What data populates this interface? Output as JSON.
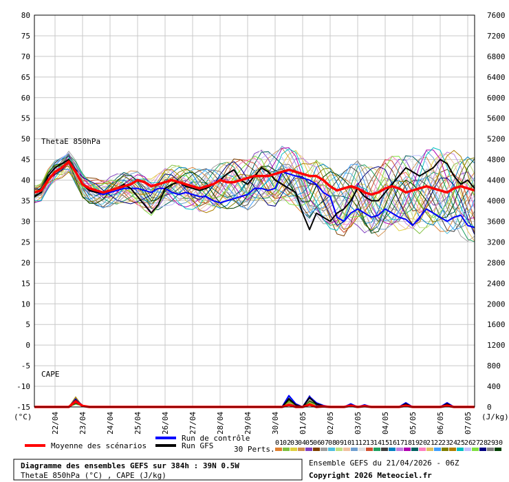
{
  "chart_data": {
    "type": "line",
    "title": "Diagramme des ensembles GEFS sur 384h : 39N 0.5W",
    "subtitle": "ThetaE 850hPa (°C) , CAPE (J/kg)",
    "panel_labels": {
      "thetae": "ThetaE 850hPa",
      "cape": "CAPE"
    },
    "left_axis": {
      "unit": "(°C)",
      "ticks": [
        -15,
        -10,
        -5,
        0,
        5,
        10,
        15,
        20,
        25,
        30,
        35,
        40,
        45,
        50,
        55,
        60,
        65,
        70,
        75,
        80
      ],
      "range": [
        -15,
        80
      ]
    },
    "right_axis": {
      "unit": "(J/kg)",
      "ticks": [
        0,
        400,
        800,
        1200,
        1600,
        2000,
        2400,
        2800,
        3200,
        3600,
        4000,
        4400,
        4800,
        5200,
        5600,
        6000,
        6400,
        6800,
        7200,
        7600
      ],
      "range": [
        0,
        7600
      ]
    },
    "x_axis": {
      "tick_labels": [
        "22/04",
        "23/04",
        "24/04",
        "25/04",
        "26/04",
        "27/04",
        "28/04",
        "29/04",
        "30/04",
        "01/05",
        "02/05",
        "03/05",
        "04/05",
        "05/05",
        "06/05",
        "07/05"
      ],
      "range_hours": [
        0,
        384
      ]
    },
    "grid": true,
    "x_hours": [
      0,
      6,
      12,
      18,
      24,
      30,
      36,
      42,
      48,
      54,
      60,
      66,
      72,
      78,
      84,
      90,
      96,
      102,
      108,
      114,
      120,
      126,
      132,
      138,
      144,
      150,
      156,
      162,
      168,
      174,
      180,
      186,
      192,
      198,
      204,
      210,
      216,
      222,
      228,
      234,
      240,
      246,
      252,
      258,
      264,
      270,
      276,
      282,
      288,
      294,
      300,
      306,
      312,
      318,
      324,
      330,
      336,
      342,
      348,
      354,
      360,
      366,
      372,
      378,
      384
    ],
    "series": [
      {
        "name": "Moyenne des scénarios",
        "color": "#ff0000",
        "thetae": [
          37,
          37.5,
          40,
          42,
          43,
          44.5,
          42,
          39,
          38,
          37.5,
          37,
          37.5,
          38,
          38.5,
          39,
          40,
          39.5,
          38.5,
          39,
          39.5,
          40,
          39.5,
          39,
          38.5,
          38,
          38.5,
          39,
          40,
          39.5,
          39.5,
          40,
          40.5,
          41,
          41,
          41,
          41.5,
          42,
          42.5,
          42,
          41.5,
          41,
          41,
          40,
          38.5,
          37.5,
          38,
          38.5,
          38,
          37,
          36.5,
          37,
          38,
          38.5,
          38,
          37,
          37.5,
          38,
          38.5,
          38,
          37.5,
          37,
          38,
          38.5,
          38,
          37.5
        ],
        "cape": [
          0,
          0,
          0,
          0,
          0,
          0,
          110,
          20,
          0,
          0,
          0,
          0,
          0,
          0,
          0,
          0,
          0,
          0,
          0,
          0,
          0,
          0,
          0,
          0,
          0,
          0,
          0,
          0,
          0,
          0,
          0,
          0,
          0,
          0,
          0,
          0,
          0,
          40,
          0,
          0,
          45,
          0,
          10,
          0,
          0,
          0,
          25,
          0,
          15,
          0,
          0,
          0,
          0,
          0,
          25,
          0,
          0,
          0,
          0,
          0,
          25,
          0,
          0,
          0,
          0
        ]
      },
      {
        "name": "Run de contrôle",
        "color": "#0000ff",
        "thetae": [
          37,
          37.5,
          40,
          42,
          43,
          44.5,
          42,
          39,
          37.5,
          37,
          36.5,
          37,
          37.5,
          38,
          38,
          38,
          37.5,
          37,
          38,
          38,
          37,
          36.5,
          37,
          36.5,
          36,
          36,
          35,
          34.5,
          35,
          35.5,
          36,
          36.5,
          38,
          38,
          37.5,
          38,
          42,
          41.5,
          41,
          40.5,
          40,
          39,
          37,
          36,
          31,
          30,
          32,
          33,
          32,
          31,
          31.5,
          33,
          32,
          31,
          30.5,
          29,
          31,
          33,
          32,
          31,
          30,
          31,
          31.5,
          29,
          28.5
        ],
        "cape": [
          0,
          0,
          0,
          0,
          0,
          0,
          140,
          30,
          0,
          0,
          0,
          0,
          0,
          0,
          0,
          0,
          0,
          0,
          0,
          0,
          0,
          0,
          0,
          0,
          0,
          0,
          0,
          0,
          0,
          0,
          0,
          0,
          0,
          0,
          0,
          0,
          0,
          220,
          60,
          0,
          200,
          80,
          30,
          0,
          0,
          0,
          60,
          0,
          40,
          0,
          0,
          0,
          0,
          0,
          80,
          0,
          0,
          0,
          0,
          0,
          80,
          0,
          0,
          0,
          0
        ]
      },
      {
        "name": "Run GFS",
        "color": "#000000",
        "thetae": [
          36,
          37,
          41,
          43,
          44,
          45,
          42,
          39,
          37.5,
          37,
          37,
          37.5,
          38,
          39,
          38,
          36,
          34,
          32,
          34,
          38,
          39,
          39.5,
          38.5,
          38,
          37.5,
          38,
          39,
          40,
          41.5,
          42.5,
          40,
          39,
          41,
          43,
          42,
          40,
          39,
          38,
          37,
          32,
          28,
          32,
          31,
          30,
          32,
          33,
          35,
          38,
          36,
          35,
          35,
          37,
          39,
          41,
          43,
          42,
          41,
          42,
          43,
          45,
          44,
          41,
          39,
          40,
          38
        ],
        "cape": [
          0,
          0,
          0,
          0,
          0,
          0,
          130,
          20,
          0,
          0,
          0,
          0,
          0,
          0,
          0,
          0,
          0,
          0,
          0,
          0,
          0,
          0,
          0,
          0,
          0,
          0,
          0,
          0,
          0,
          0,
          0,
          0,
          0,
          0,
          0,
          0,
          0,
          160,
          40,
          0,
          180,
          60,
          20,
          0,
          0,
          0,
          40,
          0,
          30,
          0,
          0,
          0,
          0,
          0,
          60,
          0,
          0,
          0,
          0,
          0,
          60,
          0,
          0,
          0,
          0
        ]
      }
    ],
    "perturbation_colors": [
      "#e08030",
      "#80c040",
      "#e0d040",
      "#d09050",
      "#8040c0",
      "#804000",
      "#a0a0a0",
      "#50c0e0",
      "#c0e080",
      "#f0c0a0",
      "#70a0d0",
      "#e0e0e0",
      "#d05030",
      "#20a060",
      "#404040",
      "#0080c0",
      "#c080e0",
      "#b000b0",
      "#006060",
      "#ff80c0",
      "#e0c060",
      "#40a0ff",
      "#808000",
      "#b08000",
      "#00c0c0",
      "#c0c0ff",
      "#80e040",
      "#000080",
      "#808080",
      "#004000"
    ],
    "legend": {
      "mean_label": "Moyenne des scénarios",
      "control_label": "Run de contrôle",
      "gfs_label": "Run GFS",
      "perts_label": "30 Perts.",
      "pert_numbers": [
        "01",
        "02",
        "03",
        "04",
        "05",
        "06",
        "07",
        "08",
        "09",
        "10",
        "11",
        "12",
        "13",
        "14",
        "15",
        "16",
        "17",
        "18",
        "19",
        "20",
        "21",
        "22",
        "23",
        "24",
        "25",
        "26",
        "27",
        "28",
        "29",
        "30"
      ]
    },
    "info": {
      "ensemble": "Ensemble GEFS du 21/04/2026 - 06Z",
      "copyright": "Copyright 2026 Meteociel.fr"
    }
  }
}
